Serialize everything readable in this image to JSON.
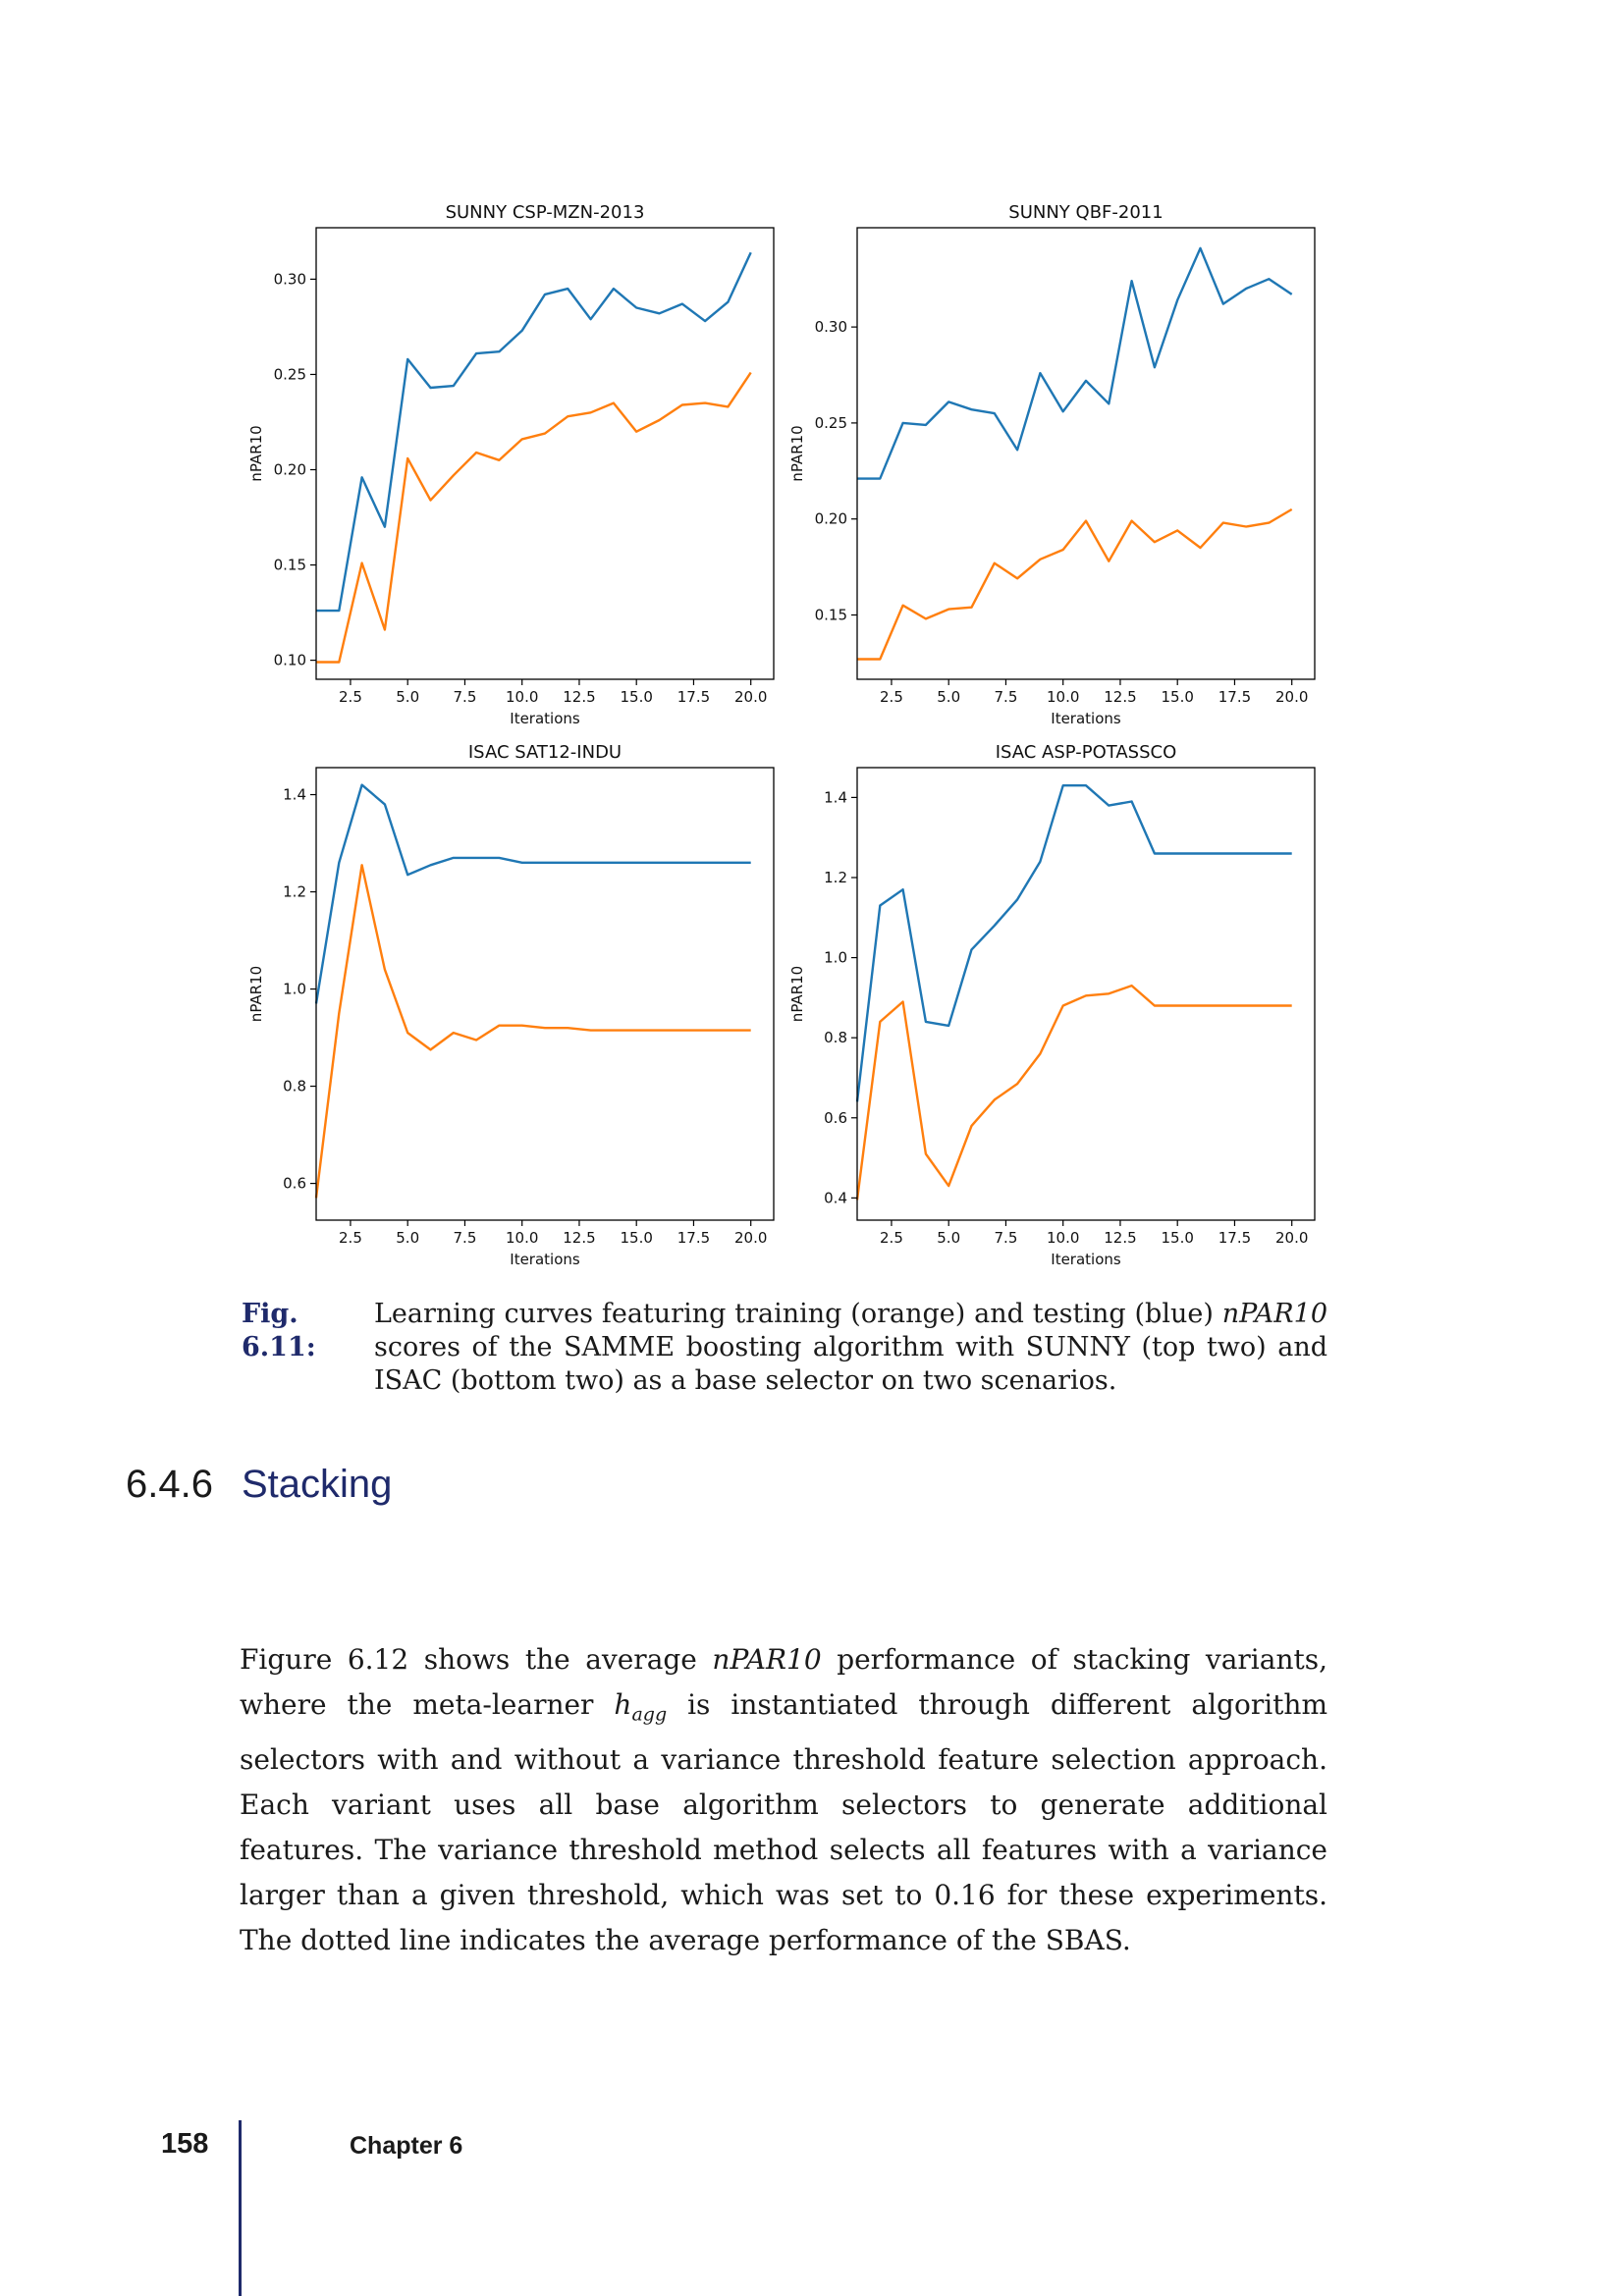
{
  "chart_data": [
    {
      "type": "line",
      "title": "SUNNY CSP-MZN-2013",
      "xlabel": "Iterations",
      "ylabel": "nPAR10",
      "xlim": [
        1,
        21
      ],
      "ylim": [
        0.09,
        0.327
      ],
      "xticks": [
        2.5,
        5.0,
        7.5,
        10.0,
        12.5,
        15.0,
        17.5,
        20.0
      ],
      "xtick_labels": [
        "2.5",
        "5.0",
        "7.5",
        "10.0",
        "12.5",
        "15.0",
        "17.5",
        "20.0"
      ],
      "yticks": [
        0.1,
        0.15,
        0.2,
        0.25,
        0.3
      ],
      "ytick_labels": [
        "0.10",
        "0.15",
        "0.20",
        "0.25",
        "0.30"
      ],
      "x": [
        1,
        2,
        3,
        4,
        5,
        6,
        7,
        8,
        9,
        10,
        11,
        12,
        13,
        14,
        15,
        16,
        17,
        18,
        19,
        20
      ],
      "series": [
        {
          "color": "#1f77b4",
          "values": [
            0.126,
            0.126,
            0.196,
            0.17,
            0.258,
            0.243,
            0.244,
            0.261,
            0.262,
            0.273,
            0.292,
            0.295,
            0.279,
            0.295,
            0.285,
            0.282,
            0.287,
            0.278,
            0.288,
            0.314
          ]
        },
        {
          "color": "#ff7f0e",
          "values": [
            0.099,
            0.099,
            0.151,
            0.116,
            0.206,
            0.184,
            0.197,
            0.209,
            0.205,
            0.216,
            0.219,
            0.228,
            0.23,
            0.235,
            0.22,
            0.226,
            0.234,
            0.235,
            0.233,
            0.251
          ]
        }
      ]
    },
    {
      "type": "line",
      "title": "SUNNY QBF-2011",
      "xlabel": "Iterations",
      "ylabel": "nPAR10",
      "xlim": [
        1,
        21
      ],
      "ylim": [
        0.1165,
        0.3517
      ],
      "xticks": [
        2.5,
        5.0,
        7.5,
        10.0,
        12.5,
        15.0,
        17.5,
        20.0
      ],
      "xtick_labels": [
        "2.5",
        "5.0",
        "7.5",
        "10.0",
        "12.5",
        "15.0",
        "17.5",
        "20.0"
      ],
      "yticks": [
        0.15,
        0.2,
        0.25,
        0.3
      ],
      "ytick_labels": [
        "0.15",
        "0.20",
        "0.25",
        "0.30"
      ],
      "x": [
        1,
        2,
        3,
        4,
        5,
        6,
        7,
        8,
        9,
        10,
        11,
        12,
        13,
        14,
        15,
        16,
        17,
        18,
        19,
        20
      ],
      "series": [
        {
          "color": "#1f77b4",
          "values": [
            0.221,
            0.221,
            0.25,
            0.249,
            0.261,
            0.257,
            0.255,
            0.236,
            0.276,
            0.256,
            0.272,
            0.26,
            0.324,
            0.279,
            0.314,
            0.341,
            0.312,
            0.32,
            0.325,
            0.317
          ]
        },
        {
          "color": "#ff7f0e",
          "values": [
            0.127,
            0.127,
            0.155,
            0.148,
            0.153,
            0.154,
            0.177,
            0.169,
            0.179,
            0.184,
            0.199,
            0.178,
            0.199,
            0.188,
            0.194,
            0.185,
            0.198,
            0.196,
            0.198,
            0.205
          ]
        }
      ]
    },
    {
      "type": "line",
      "title": "ISAC SAT12-INDU",
      "xlabel": "Iterations",
      "ylabel": "nPAR10",
      "xlim": [
        1,
        21
      ],
      "ylim": [
        0.5244,
        1.4556
      ],
      "xticks": [
        2.5,
        5.0,
        7.5,
        10.0,
        12.5,
        15.0,
        17.5,
        20.0
      ],
      "xtick_labels": [
        "2.5",
        "5.0",
        "7.5",
        "10.0",
        "12.5",
        "15.0",
        "17.5",
        "20.0"
      ],
      "yticks": [
        0.6,
        0.8,
        1.0,
        1.2,
        1.4
      ],
      "ytick_labels": [
        "0.6",
        "0.8",
        "1.0",
        "1.2",
        "1.4"
      ],
      "x": [
        1,
        2,
        3,
        4,
        5,
        6,
        7,
        8,
        9,
        10,
        11,
        12,
        13,
        14,
        15,
        16,
        17,
        18,
        19,
        20
      ],
      "series": [
        {
          "color": "#1f77b4",
          "values": [
            0.97,
            1.26,
            1.42,
            1.38,
            1.235,
            1.255,
            1.27,
            1.27,
            1.27,
            1.26,
            1.26,
            1.26,
            1.26,
            1.26,
            1.26,
            1.26,
            1.26,
            1.26,
            1.26,
            1.26
          ]
        },
        {
          "color": "#ff7f0e",
          "values": [
            0.57,
            0.95,
            1.255,
            1.04,
            0.91,
            0.875,
            0.91,
            0.895,
            0.925,
            0.925,
            0.92,
            0.92,
            0.915,
            0.915,
            0.915,
            0.915,
            0.915,
            0.915,
            0.915,
            0.915
          ]
        }
      ]
    },
    {
      "type": "line",
      "title": "ISAC ASP-POTASSCO",
      "xlabel": "Iterations",
      "ylabel": "nPAR10",
      "xlim": [
        1,
        21
      ],
      "ylim": [
        0.3445,
        1.4745
      ],
      "xticks": [
        2.5,
        5.0,
        7.5,
        10.0,
        12.5,
        15.0,
        17.5,
        20.0
      ],
      "xtick_labels": [
        "2.5",
        "5.0",
        "7.5",
        "10.0",
        "12.5",
        "15.0",
        "17.5",
        "20.0"
      ],
      "yticks": [
        0.4,
        0.6,
        0.8,
        1.0,
        1.2,
        1.4
      ],
      "ytick_labels": [
        "0.4",
        "0.6",
        "0.8",
        "1.0",
        "1.2",
        "1.4"
      ],
      "x": [
        1,
        2,
        3,
        4,
        5,
        6,
        7,
        8,
        9,
        10,
        11,
        12,
        13,
        14,
        15,
        16,
        17,
        18,
        19,
        20
      ],
      "series": [
        {
          "color": "#1f77b4",
          "values": [
            0.64,
            1.13,
            1.17,
            0.84,
            0.83,
            1.02,
            1.08,
            1.145,
            1.24,
            1.43,
            1.43,
            1.38,
            1.39,
            1.26,
            1.26,
            1.26,
            1.26,
            1.26,
            1.26,
            1.26
          ]
        },
        {
          "color": "#ff7f0e",
          "values": [
            0.395,
            0.84,
            0.89,
            0.51,
            0.43,
            0.58,
            0.645,
            0.685,
            0.76,
            0.88,
            0.905,
            0.91,
            0.93,
            0.88,
            0.88,
            0.88,
            0.88,
            0.88,
            0.88,
            0.88
          ]
        }
      ]
    }
  ],
  "caption": {
    "label": "Fig. 6.11:",
    "text_before": "Learning curves featuring training (orange) and testing (blue) ",
    "emph": "nPAR10",
    "text_after": " scores of the SAMME boosting algorithm with SUNNY (top two) and ISAC (bottom two) as a base selector on two scenarios."
  },
  "section": {
    "number": "6.4.6",
    "title": "Stacking"
  },
  "paragraph": {
    "t1": "Figure 6.12 shows the average ",
    "e1": "nPAR10",
    "t2": " performance of stacking variants, where the meta-learner ",
    "h": "h",
    "hsub": "agg",
    "t3": " is instantiated through different algorithm selectors with and without a variance threshold feature selection approach. Each variant uses all base algorithm selectors to generate additional features. The variance threshold method selects all features with a variance larger than a given threshold, which was set to ",
    "num": "0.16",
    "t4": " for these experiments. The dotted line indicates the average performance of the SBAS."
  },
  "footer": {
    "page_number": "158",
    "chapter": "Chapter 6"
  }
}
